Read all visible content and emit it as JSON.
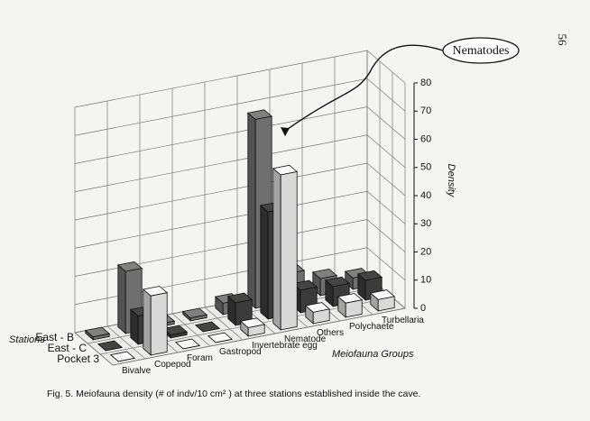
{
  "page_number": "56",
  "annotation": "Nematodes",
  "caption": "Fig. 5. Meiofauna density (# of indv/10 cm² ) at three stations established inside the cave.",
  "chart_data": {
    "type": "bar",
    "y_label": "Density",
    "x_label": "Meiofauna Groups",
    "depth_label": "Stations",
    "categories": [
      "Bivalve",
      "Copepod",
      "Foram",
      "Gastropod",
      "Invertebrate egg",
      "Nematode",
      "Others",
      "Polychaete",
      "Turbellaria"
    ],
    "series": [
      {
        "name": "Pocket 3",
        "color": "#d9d9d9",
        "values": [
          0,
          21,
          0,
          0,
          3,
          55,
          4,
          5,
          4
        ]
      },
      {
        "name": "East - C",
        "color": "#3b3b3b",
        "values": [
          0,
          10,
          1,
          0,
          8,
          38,
          8,
          7,
          7
        ]
      },
      {
        "name": "East - B",
        "color": "#6f6f6f",
        "values": [
          1,
          22,
          1,
          1,
          4,
          67,
          10,
          6,
          4
        ]
      }
    ],
    "ylim": [
      0,
      80
    ],
    "yticks": [
      0,
      10,
      20,
      30,
      40,
      50,
      60,
      70,
      80
    ],
    "grid": true
  }
}
